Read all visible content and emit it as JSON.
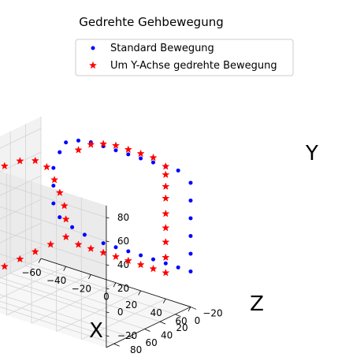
{
  "chart_data": {
    "type": "scatter",
    "projection": "3d",
    "title": "Gedrehte Gehbewegung",
    "xlabel": "X",
    "ylabel": "Y",
    "zlabel": "Z",
    "xlim": [
      -60,
      60
    ],
    "ylim": [
      -30,
      90
    ],
    "zlim": [
      -20,
      90
    ],
    "xticks": [
      -60,
      -40,
      -20,
      0,
      20,
      40,
      60
    ],
    "yticks": [
      -20,
      0,
      20,
      40,
      60,
      80
    ],
    "zticks": [
      -20,
      0,
      20,
      40,
      60,
      80
    ],
    "grid": true,
    "legend_position": "top-right",
    "series": [
      {
        "name": "Standard Bewegung",
        "marker": "point",
        "color": "#0000ff",
        "points": [
          {
            "x": -10,
            "y": 0,
            "z": -20
          },
          {
            "x": 0,
            "y": 0,
            "z": -20
          },
          {
            "x": 10,
            "y": 0,
            "z": -20
          },
          {
            "x": 20,
            "y": 0,
            "z": -20
          },
          {
            "x": 30,
            "y": 0,
            "z": -20
          },
          {
            "x": 40,
            "y": 0,
            "z": -20
          },
          {
            "x": 50,
            "y": 0,
            "z": -20
          },
          {
            "x": 60,
            "y": 0,
            "z": -20
          },
          {
            "x": 60,
            "y": 15,
            "z": -20
          },
          {
            "x": 60,
            "y": 30,
            "z": -20
          },
          {
            "x": 60,
            "y": 45,
            "z": -20
          },
          {
            "x": 60,
            "y": 60,
            "z": -20
          },
          {
            "x": 60,
            "y": 75,
            "z": -20
          },
          {
            "x": 50,
            "y": 82,
            "z": -20
          },
          {
            "x": 40,
            "y": 82,
            "z": -20
          },
          {
            "x": 30,
            "y": 82,
            "z": -20
          },
          {
            "x": 20,
            "y": 82,
            "z": -20
          },
          {
            "x": 10,
            "y": 82,
            "z": -20
          },
          {
            "x": 0,
            "y": 82,
            "z": -20
          },
          {
            "x": -10,
            "y": 82,
            "z": -20
          },
          {
            "x": -20,
            "y": 82,
            "z": -20
          },
          {
            "x": -30,
            "y": 80,
            "z": -20
          },
          {
            "x": -40,
            "y": 75,
            "z": -20
          },
          {
            "x": -45,
            "y": 65,
            "z": -20
          },
          {
            "x": -50,
            "y": 50,
            "z": -20
          },
          {
            "x": -50,
            "y": 35,
            "z": -20
          },
          {
            "x": -50,
            "y": 20,
            "z": -20
          },
          {
            "x": -45,
            "y": 10,
            "z": -20
          },
          {
            "x": -35,
            "y": 5,
            "z": -20
          },
          {
            "x": -25,
            "y": 2,
            "z": -20
          }
        ]
      },
      {
        "name": "Um Y-Achse gedrehte Bewegung",
        "marker": "star",
        "color": "#ff0000",
        "points": [
          {
            "x": -40,
            "y": -5,
            "z": 60
          },
          {
            "x": -40,
            "y": -5,
            "z": 40
          },
          {
            "x": -40,
            "y": -5,
            "z": 20
          },
          {
            "x": -40,
            "y": -5,
            "z": 0
          },
          {
            "x": -40,
            "y": -5,
            "z": -20
          },
          {
            "x": -40,
            "y": 15,
            "z": 80
          },
          {
            "x": -40,
            "y": 35,
            "z": 80
          },
          {
            "x": -40,
            "y": 55,
            "z": 80
          },
          {
            "x": -40,
            "y": 75,
            "z": 80
          },
          {
            "x": -40,
            "y": 80,
            "z": 60
          },
          {
            "x": -40,
            "y": 78,
            "z": 40
          },
          {
            "x": -40,
            "y": 72,
            "z": 20
          },
          {
            "x": -40,
            "y": 62,
            "z": 5
          },
          {
            "x": -40,
            "y": 48,
            "z": -5
          },
          {
            "x": -40,
            "y": 35,
            "z": -12
          },
          {
            "x": -40,
            "y": 22,
            "z": -18
          },
          {
            "x": -40,
            "y": 10,
            "z": -20
          },
          {
            "x": -30,
            "y": -8,
            "z": -20
          },
          {
            "x": -20,
            "y": -8,
            "z": -20
          },
          {
            "x": -10,
            "y": -8,
            "z": -20
          },
          {
            "x": 0,
            "y": -8,
            "z": -20
          },
          {
            "x": 10,
            "y": -8,
            "z": -20
          },
          {
            "x": 20,
            "y": -8,
            "z": -20
          },
          {
            "x": 30,
            "y": -8,
            "z": -20
          },
          {
            "x": 40,
            "y": -8,
            "z": -20
          },
          {
            "x": 40,
            "y": 5,
            "z": -20
          },
          {
            "x": 40,
            "y": 18,
            "z": -20
          },
          {
            "x": 40,
            "y": 30,
            "z": -20
          },
          {
            "x": 40,
            "y": 42,
            "z": -20
          },
          {
            "x": 40,
            "y": 55,
            "z": -20
          },
          {
            "x": 40,
            "y": 65,
            "z": -20
          },
          {
            "x": 40,
            "y": 75,
            "z": -20
          },
          {
            "x": 40,
            "y": 82,
            "z": -20
          },
          {
            "x": 30,
            "y": 86,
            "z": -20
          },
          {
            "x": 20,
            "y": 86,
            "z": -20
          },
          {
            "x": 10,
            "y": 86,
            "z": -20
          },
          {
            "x": 0,
            "y": 86,
            "z": -20
          },
          {
            "x": -10,
            "y": 84,
            "z": -20
          },
          {
            "x": -20,
            "y": 80,
            "z": -20
          },
          {
            "x": -30,
            "y": 72,
            "z": -20
          }
        ]
      }
    ]
  }
}
